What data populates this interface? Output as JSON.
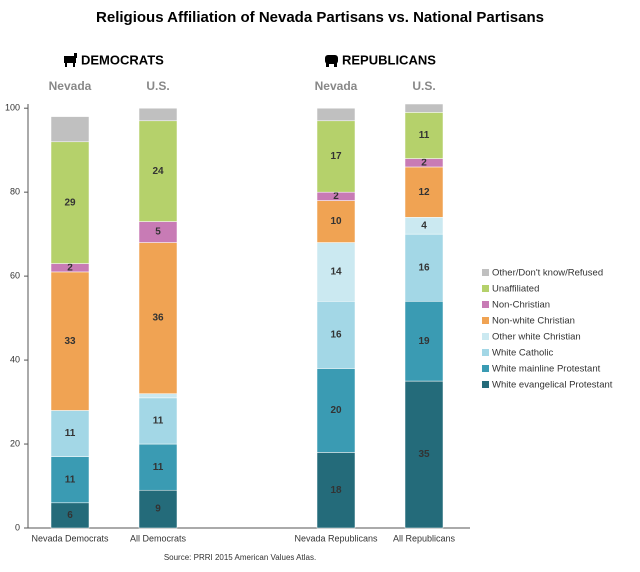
{
  "chart_data": {
    "type": "stacked-bar",
    "title": "Religious Affiliation of Nevada Partisans vs. National Partisans",
    "source": "Source: PRRI 2015 American Values Atlas.",
    "groups": [
      {
        "label": "DEMOCRATS",
        "sublabels": [
          "Nevada",
          "U.S."
        ]
      },
      {
        "label": "REPUBLICANS",
        "sublabels": [
          "Nevada",
          "U.S."
        ]
      }
    ],
    "categories": [
      "Nevada Democrats",
      "All Democrats",
      "Nevada Republicans",
      "All Republicans"
    ],
    "ylim": [
      0,
      101
    ],
    "yticks": [
      0,
      20,
      40,
      60,
      80,
      100
    ],
    "series": [
      {
        "name": "White evangelical Protestant",
        "color": "#246b7a",
        "labels": true,
        "values": [
          6,
          9,
          18,
          35
        ]
      },
      {
        "name": "White mainline Protestant",
        "color": "#3a9bb3",
        "labels": true,
        "values": [
          11,
          11,
          20,
          19
        ]
      },
      {
        "name": "White Catholic",
        "color": "#a3d7e6",
        "labels": true,
        "values": [
          11,
          11,
          16,
          16
        ]
      },
      {
        "name": "Other white Christian",
        "color": "#cbe9f1",
        "labels": true,
        "values": [
          0,
          1,
          14,
          4
        ]
      },
      {
        "name": "Non-white Christian",
        "color": "#f0a353",
        "labels": true,
        "values": [
          33,
          36,
          10,
          12
        ]
      },
      {
        "name": "Non-Christian",
        "color": "#c87bb5",
        "labels": true,
        "values": [
          2,
          5,
          2,
          2
        ]
      },
      {
        "name": "Unaffiliated",
        "color": "#b5d16b",
        "labels": true,
        "values": [
          29,
          24,
          17,
          11
        ]
      },
      {
        "name": "Other/Don't know/Refused",
        "color": "#c0c0c0",
        "labels": false,
        "values": [
          6,
          3,
          3,
          2
        ]
      }
    ]
  }
}
